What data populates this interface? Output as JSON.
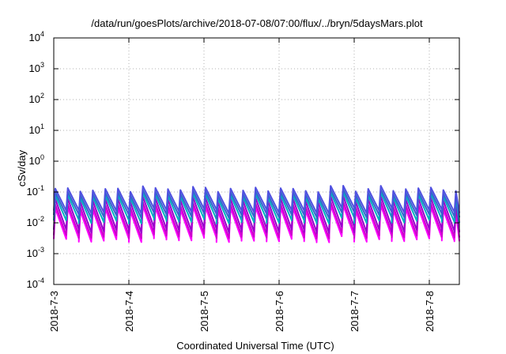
{
  "chart_data": {
    "type": "line",
    "title": "/data/run/goesPlots/archive/2018-07-08/07:00/flux/../bryn/5daysMars.plot",
    "xlabel": "Coordinated Universal Time (UTC)",
    "ylabel": "cSv/day",
    "yscale": "log",
    "ylim": [
      0.0001,
      10000
    ],
    "xlim": [
      "2018-07-03",
      "2018-07-08 08:00"
    ],
    "x_ticks": [
      "2018-7-3",
      "2018-7-4",
      "2018-7-5",
      "2018-7-6",
      "2018-7-7",
      "2018-7-8"
    ],
    "y_ticks": [
      {
        "base": "10",
        "exp": "-4"
      },
      {
        "base": "10",
        "exp": "-3"
      },
      {
        "base": "10",
        "exp": "-2"
      },
      {
        "base": "10",
        "exp": "-1"
      },
      {
        "base": "10",
        "exp": "0"
      },
      {
        "base": "10",
        "exp": "1"
      },
      {
        "base": "10",
        "exp": "2"
      },
      {
        "base": "10",
        "exp": "3"
      },
      {
        "base": "10",
        "exp": "4"
      }
    ],
    "grid": true,
    "series_pattern": "sawtooth",
    "period_hours": 4,
    "series": [
      {
        "color": "#ff00ff",
        "peak": 0.03,
        "trough": 0.003
      },
      {
        "color": "#cc00cc",
        "peak": 0.04,
        "trough": 0.004
      },
      {
        "color": "#9900cc",
        "peak": 0.06,
        "trough": 0.006
      },
      {
        "color": "#00b0c0",
        "peak": 0.08,
        "trough": 0.012
      },
      {
        "color": "#3366cc",
        "peak": 0.1,
        "trough": 0.018
      },
      {
        "color": "#5050e0",
        "peak": 0.13,
        "trough": 0.025
      }
    ]
  }
}
